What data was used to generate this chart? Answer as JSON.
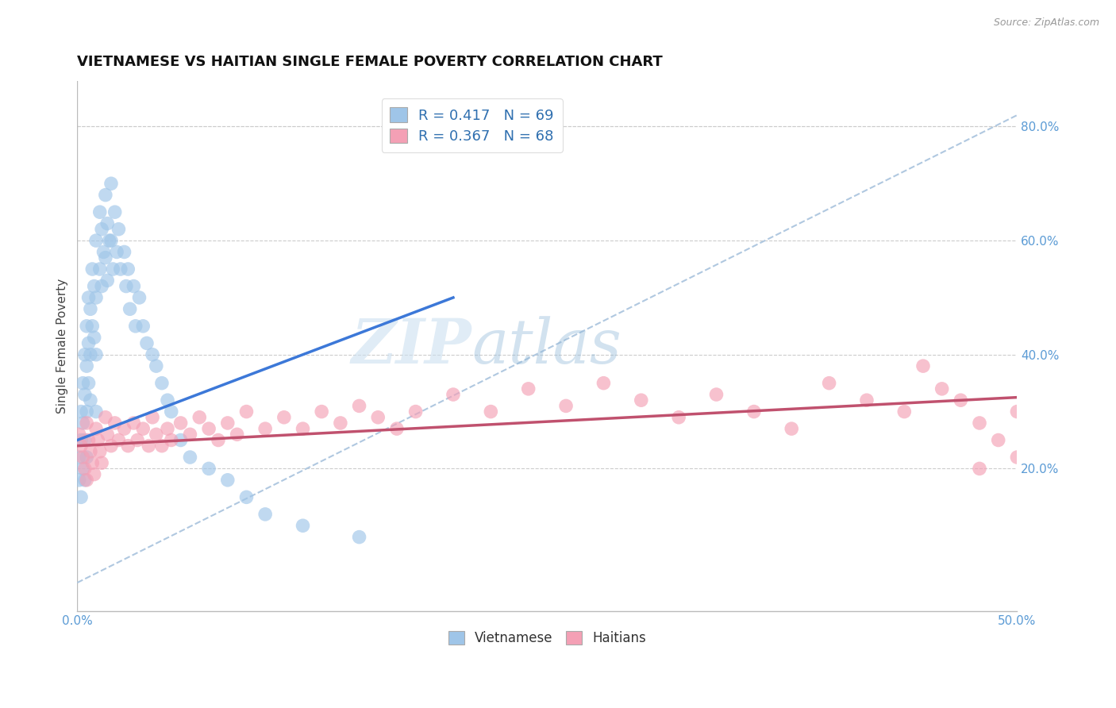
{
  "title": "VIETNAMESE VS HAITIAN SINGLE FEMALE POVERTY CORRELATION CHART",
  "source": "Source: ZipAtlas.com",
  "ylabel": "Single Female Poverty",
  "xlim": [
    0.0,
    0.5
  ],
  "ylim": [
    -0.05,
    0.88
  ],
  "xtick_vals": [
    0.0,
    0.5
  ],
  "xtick_labels": [
    "0.0%",
    "50.0%"
  ],
  "ytick_vals_right": [
    0.2,
    0.4,
    0.6,
    0.8
  ],
  "ytick_labels_right": [
    "20.0%",
    "40.0%",
    "60.0%",
    "80.0%"
  ],
  "r1": 0.417,
  "n1": 69,
  "r2": 0.367,
  "n2": 68,
  "legend_label1": "Vietnamese",
  "legend_label2": "Haitians",
  "color_vietnamese": "#9fc5e8",
  "color_haitian": "#f4a0b5",
  "color_line_vietnamese": "#3c78d8",
  "color_line_haitian": "#c0516e",
  "color_diag_line": "#b0c8e0",
  "background_color": "#ffffff",
  "title_fontsize": 13,
  "axis_label_fontsize": 11,
  "tick_fontsize": 11,
  "viet_line_x0": 0.0,
  "viet_line_y0": 0.25,
  "viet_line_x1": 0.2,
  "viet_line_y1": 0.5,
  "hait_line_x0": 0.0,
  "hait_line_y0": 0.24,
  "hait_line_x1": 0.5,
  "hait_line_y1": 0.325,
  "diag_line_x0": 0.0,
  "diag_line_y0": 0.0,
  "diag_line_x1": 0.5,
  "diag_line_y1": 0.82,
  "vietnamese_x": [
    0.001,
    0.001,
    0.002,
    0.002,
    0.002,
    0.003,
    0.003,
    0.003,
    0.004,
    0.004,
    0.004,
    0.004,
    0.005,
    0.005,
    0.005,
    0.005,
    0.006,
    0.006,
    0.006,
    0.007,
    0.007,
    0.007,
    0.008,
    0.008,
    0.009,
    0.009,
    0.01,
    0.01,
    0.01,
    0.01,
    0.012,
    0.012,
    0.013,
    0.013,
    0.014,
    0.015,
    0.015,
    0.016,
    0.016,
    0.017,
    0.018,
    0.018,
    0.019,
    0.02,
    0.021,
    0.022,
    0.023,
    0.025,
    0.026,
    0.027,
    0.028,
    0.03,
    0.031,
    0.033,
    0.035,
    0.037,
    0.04,
    0.042,
    0.045,
    0.048,
    0.05,
    0.055,
    0.06,
    0.07,
    0.08,
    0.09,
    0.1,
    0.12,
    0.15
  ],
  "vietnamese_y": [
    0.22,
    0.18,
    0.3,
    0.25,
    0.15,
    0.35,
    0.28,
    0.2,
    0.4,
    0.33,
    0.25,
    0.18,
    0.45,
    0.38,
    0.3,
    0.22,
    0.5,
    0.42,
    0.35,
    0.48,
    0.4,
    0.32,
    0.55,
    0.45,
    0.52,
    0.43,
    0.6,
    0.5,
    0.4,
    0.3,
    0.65,
    0.55,
    0.62,
    0.52,
    0.58,
    0.68,
    0.57,
    0.63,
    0.53,
    0.6,
    0.7,
    0.6,
    0.55,
    0.65,
    0.58,
    0.62,
    0.55,
    0.58,
    0.52,
    0.55,
    0.48,
    0.52,
    0.45,
    0.5,
    0.45,
    0.42,
    0.4,
    0.38,
    0.35,
    0.32,
    0.3,
    0.25,
    0.22,
    0.2,
    0.18,
    0.15,
    0.12,
    0.1,
    0.08
  ],
  "haitian_x": [
    0.001,
    0.002,
    0.003,
    0.004,
    0.005,
    0.005,
    0.006,
    0.007,
    0.008,
    0.009,
    0.01,
    0.011,
    0.012,
    0.013,
    0.015,
    0.016,
    0.018,
    0.02,
    0.022,
    0.025,
    0.027,
    0.03,
    0.032,
    0.035,
    0.038,
    0.04,
    0.042,
    0.045,
    0.048,
    0.05,
    0.055,
    0.06,
    0.065,
    0.07,
    0.075,
    0.08,
    0.085,
    0.09,
    0.1,
    0.11,
    0.12,
    0.13,
    0.14,
    0.15,
    0.16,
    0.17,
    0.18,
    0.2,
    0.22,
    0.24,
    0.26,
    0.28,
    0.3,
    0.32,
    0.34,
    0.36,
    0.38,
    0.4,
    0.42,
    0.44,
    0.45,
    0.46,
    0.47,
    0.48,
    0.49,
    0.5,
    0.5,
    0.48
  ],
  "haitian_y": [
    0.26,
    0.24,
    0.22,
    0.2,
    0.28,
    0.18,
    0.25,
    0.23,
    0.21,
    0.19,
    0.27,
    0.25,
    0.23,
    0.21,
    0.29,
    0.26,
    0.24,
    0.28,
    0.25,
    0.27,
    0.24,
    0.28,
    0.25,
    0.27,
    0.24,
    0.29,
    0.26,
    0.24,
    0.27,
    0.25,
    0.28,
    0.26,
    0.29,
    0.27,
    0.25,
    0.28,
    0.26,
    0.3,
    0.27,
    0.29,
    0.27,
    0.3,
    0.28,
    0.31,
    0.29,
    0.27,
    0.3,
    0.33,
    0.3,
    0.34,
    0.31,
    0.35,
    0.32,
    0.29,
    0.33,
    0.3,
    0.27,
    0.35,
    0.32,
    0.3,
    0.38,
    0.34,
    0.32,
    0.28,
    0.25,
    0.3,
    0.22,
    0.2
  ]
}
